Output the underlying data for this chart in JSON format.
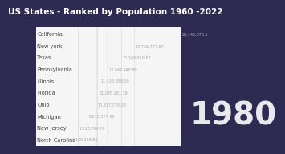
{
  "title": "US States - Ranked by Population 1960 -2022",
  "year": "1980",
  "background_color": "#2e2b52",
  "states": [
    "California",
    "New york",
    "Texas",
    "Pennsylvania",
    "Illinois",
    "Florida",
    "Ohio",
    "Michigan",
    "New jersey",
    "North Carolina"
  ],
  "values": [
    26143073.5,
    17735777.57,
    15349610.52,
    12842948.88,
    11423888.59,
    11045281.19,
    10817735.08,
    9275577.06,
    7513294.76,
    6189268.86
  ],
  "value_labels": [
    "26,143,073.5",
    "17,735,777.57",
    "15,349,610.52",
    "12,842,948.88",
    "11,423,888.59",
    "11,045,281.19",
    "10,817,735.08",
    "9,275,577.06",
    "7,513,294.76",
    "6,189,268.86"
  ],
  "title_color": "#ffffff",
  "label_color": "#444444",
  "value_color": "#666666",
  "year_color": "#ffffff",
  "title_fontsize": 7.5,
  "label_fontsize": 4.8,
  "value_fontsize": 3.5,
  "year_fontsize": 28,
  "xlim_max": 28000000,
  "bar_facecolor": "#f5f5f5",
  "bar_edgecolor": "#cccccc"
}
